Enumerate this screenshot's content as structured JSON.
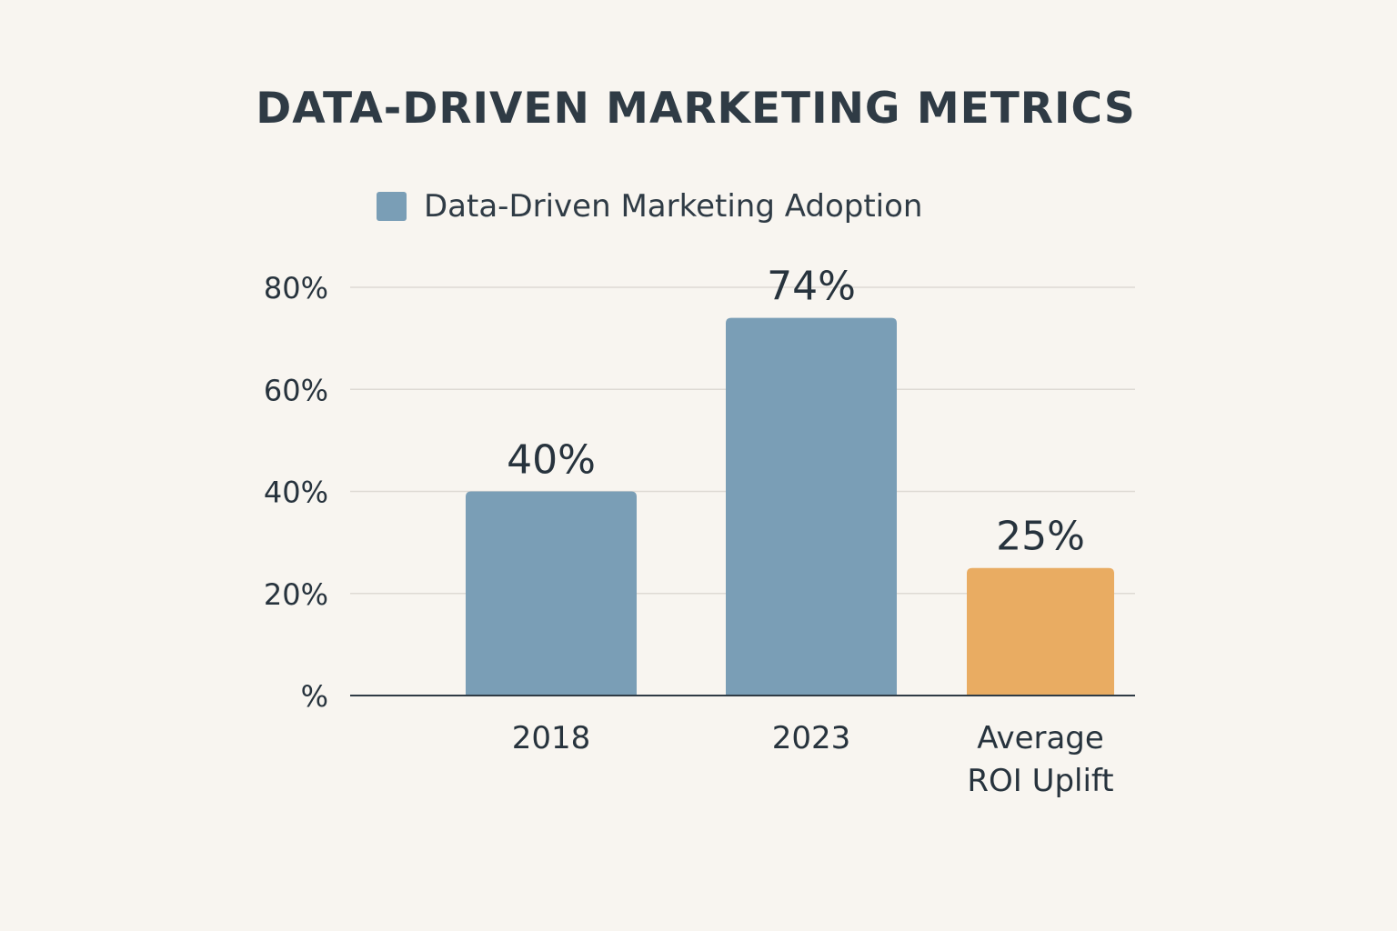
{
  "chart_data": {
    "type": "bar",
    "title": "DATA-DRIVEN MARKETING METRICS",
    "legend": {
      "label": "Data-Driven Marketing Adoption",
      "position": "top"
    },
    "categories": [
      [
        "2018"
      ],
      [
        "2023"
      ],
      [
        "Average",
        "ROI Uplift"
      ]
    ],
    "values": [
      40,
      74,
      25
    ],
    "value_labels": [
      "40%",
      "74%",
      "25%"
    ],
    "bar_colors": [
      "#7a9eb6",
      "#7a9eb6",
      "#e9ac62"
    ],
    "ylim": [
      0,
      80
    ],
    "yticks": [
      0,
      20,
      40,
      60,
      80
    ],
    "ytick_labels": [
      "%",
      "20%",
      "40%",
      "60%",
      "80%"
    ],
    "grid": true,
    "xlabel": "",
    "ylabel": ""
  },
  "colors": {
    "background": "#f8f5f0",
    "text": "#27333d",
    "adoption_bar": "#7a9eb6",
    "roi_bar": "#e9ac62",
    "gridline": "#dedad4",
    "axis": "#2f3b45"
  }
}
